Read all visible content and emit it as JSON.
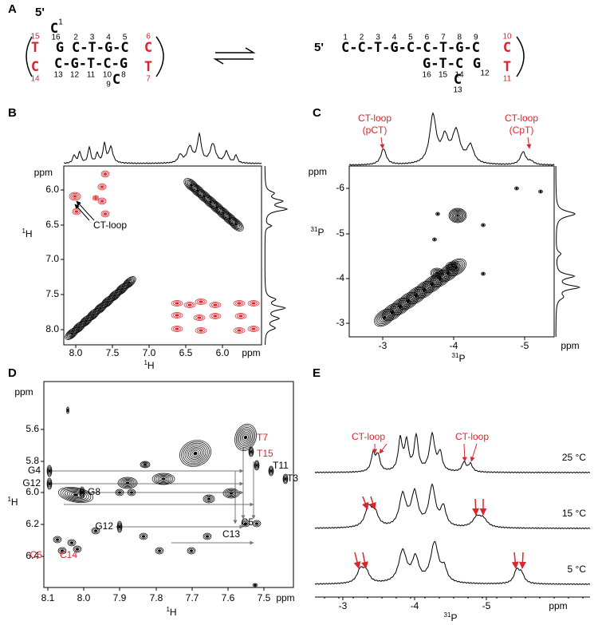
{
  "panel_a": {
    "label": "A",
    "left": {
      "five_prime": "5'",
      "c1": "C",
      "n1": "1",
      "t15": "T",
      "n15": "15",
      "g16": "G",
      "n16": "16",
      "top": "C-T-G-C",
      "top_numbers": [
        "2",
        "3",
        "4",
        "5"
      ],
      "c6": "C",
      "n6": "6",
      "c14": "C",
      "n14": "14",
      "bottom": "C-G-T-C-G",
      "bottom_numbers": [
        "13",
        "12",
        "11",
        "10",
        "8"
      ],
      "c9": "C",
      "n9": "9",
      "t7": "T",
      "n7": "7"
    },
    "right": {
      "five_prime": "5'",
      "top": "C-C-T-G-C-C-T-G-C",
      "top_numbers": [
        "1",
        "2",
        "3",
        "4",
        "5",
        "6",
        "7",
        "8",
        "9"
      ],
      "c10": "C",
      "n10": "10",
      "bottom": "G-T-C",
      "bottom_numbers": [
        "16",
        "15",
        "14"
      ],
      "g12": "G",
      "n12": "12",
      "c13": "C",
      "n13": "13",
      "t11": "T",
      "n11": "11"
    }
  },
  "panel_b": {
    "label": "B",
    "y_unit": "ppm",
    "yticks": [
      "6.0",
      "6.5",
      "7.0",
      "7.5",
      "8.0"
    ],
    "y_axis": {
      "sup": "1",
      "main": "H"
    },
    "xticks": [
      "8.0",
      "7.5",
      "7.0",
      "6.5",
      "6.0"
    ],
    "x_unit": "ppm",
    "x_axis": {
      "sup": "1",
      "main": "H"
    },
    "annotation": "CT-loop"
  },
  "panel_c": {
    "label": "C",
    "annotations": [
      {
        "line1": "CT-loop",
        "line2": "(pCT)"
      },
      {
        "line1": "CT-loop",
        "line2": "(CpT)"
      }
    ],
    "y_unit": "ppm",
    "yticks": [
      "-6",
      "-5",
      "-4",
      "-3"
    ],
    "y_axis": {
      "sup": "31",
      "main": "P"
    },
    "xticks": [
      "-3",
      "-4",
      "-5"
    ],
    "x_unit": "ppm",
    "x_axis": {
      "sup": "31",
      "main": "P"
    }
  },
  "panel_d": {
    "label": "D",
    "y_unit": "ppm",
    "yticks": [
      "5.6",
      "5.8",
      "6.0",
      "6.2",
      "6.4"
    ],
    "y_axis": {
      "sup": "1",
      "main": "H"
    },
    "xticks": [
      "8.1",
      "8.0",
      "7.9",
      "7.8",
      "7.7",
      "7.6",
      "7.5"
    ],
    "x_unit": "ppm",
    "x_axis": {
      "sup": "1",
      "main": "H"
    },
    "residue_labels": [
      {
        "text": "T7",
        "color": "#d8262c"
      },
      {
        "text": "T15",
        "color": "#d8262c"
      },
      {
        "text": "T11",
        "color": "#000000"
      },
      {
        "text": "T3",
        "color": "#000000"
      },
      {
        "text": "G4",
        "color": "#000000"
      },
      {
        "text": "G12",
        "color": "#000000"
      },
      {
        "text": "G8",
        "color": "#000000"
      },
      {
        "text": "G12",
        "color": "#000000"
      },
      {
        "text": "C5",
        "color": "#000000"
      },
      {
        "text": "C13",
        "color": "#000000"
      },
      {
        "text": "C6",
        "color": "#d8262c"
      },
      {
        "text": "C14",
        "color": "#d8262c"
      }
    ]
  },
  "panel_e": {
    "label": "E",
    "annotations": [
      "CT-loop",
      "CT-loop"
    ],
    "temperatures": [
      "25 °C",
      "15 °C",
      "5 °C"
    ],
    "xticks": [
      "-3",
      "-4",
      "-5"
    ],
    "x_unit": "ppm",
    "x_axis": {
      "sup": "31",
      "main": "P"
    }
  }
}
